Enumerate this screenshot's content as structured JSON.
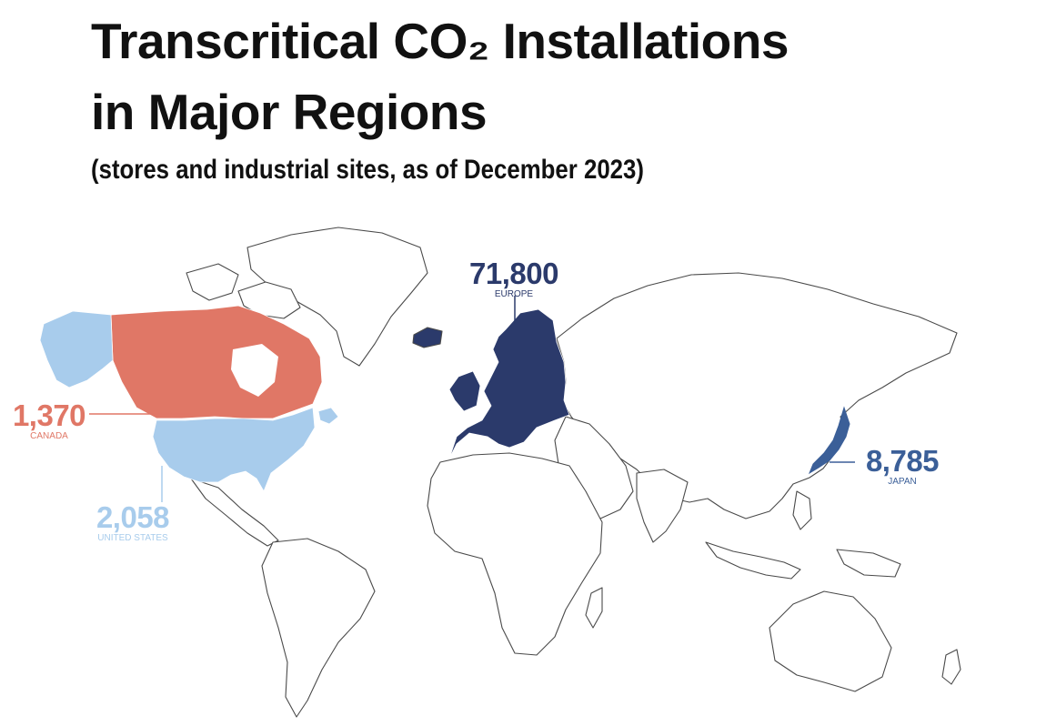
{
  "title": {
    "line1": "Transcritical CO₂ Installations",
    "line2": "in Major Regions"
  },
  "subtitle": "(stores and industrial sites, as of December 2023)",
  "regions": {
    "europe": {
      "value": "71,800",
      "name": "EUROPE",
      "color": "#2b3a6b"
    },
    "canada": {
      "value": "1,370",
      "name": "CANADA",
      "color": "#e07766"
    },
    "united_states": {
      "value": "2,058",
      "name": "UNITED STATES",
      "color": "#a8ccec"
    },
    "japan": {
      "value": "8,785",
      "name": "JAPAN",
      "color": "#3b5f98"
    }
  },
  "colors": {
    "land_fill": "#ffffff",
    "border": "#4a4a4a",
    "alaska": "#a8ccec"
  }
}
